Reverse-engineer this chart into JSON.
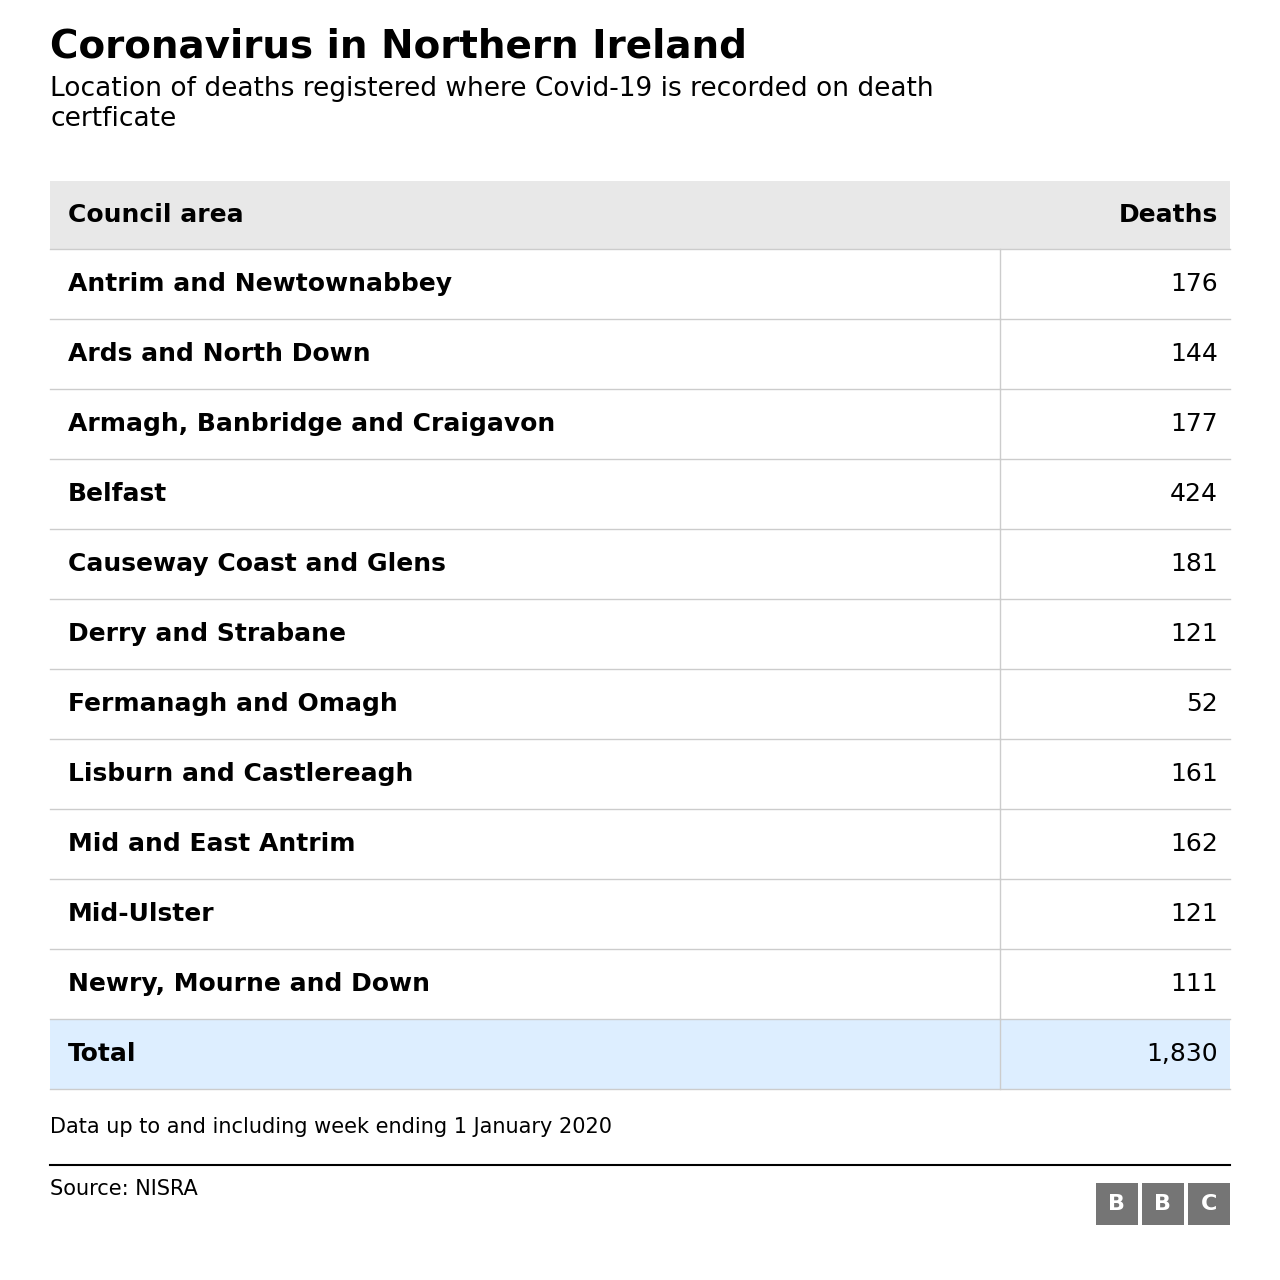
{
  "title": "Coronavirus in Northern Ireland",
  "subtitle": "Location of deaths registered where Covid-19 is recorded on death\ncertficate",
  "col1_header": "Council area",
  "col2_header": "Deaths",
  "rows": [
    [
      "Antrim and Newtownabbey",
      "176"
    ],
    [
      "Ards and North Down",
      "144"
    ],
    [
      "Armagh, Banbridge and Craigavon",
      "177"
    ],
    [
      "Belfast",
      "424"
    ],
    [
      "Causeway Coast and Glens",
      "181"
    ],
    [
      "Derry and Strabane",
      "121"
    ],
    [
      "Fermanagh and Omagh",
      "52"
    ],
    [
      "Lisburn and Castlereagh",
      "161"
    ],
    [
      "Mid and East Antrim",
      "162"
    ],
    [
      "Mid-Ulster",
      "121"
    ],
    [
      "Newry, Mourne and Down",
      "111"
    ]
  ],
  "total_label": "Total",
  "total_value": "1,830",
  "footer_note": "Data up to and including week ending 1 January 2020",
  "source": "Source: NISRA",
  "bg_color": "#ffffff",
  "header_bg_color": "#e8e8e8",
  "total_bg_color": "#ddeeff",
  "row_line_color": "#cccccc",
  "title_fontsize": 28,
  "subtitle_fontsize": 19,
  "header_fontsize": 18,
  "row_fontsize": 18,
  "footer_fontsize": 15,
  "bbc_box_color": "#757575",
  "bbc_text_color": "#ffffff"
}
